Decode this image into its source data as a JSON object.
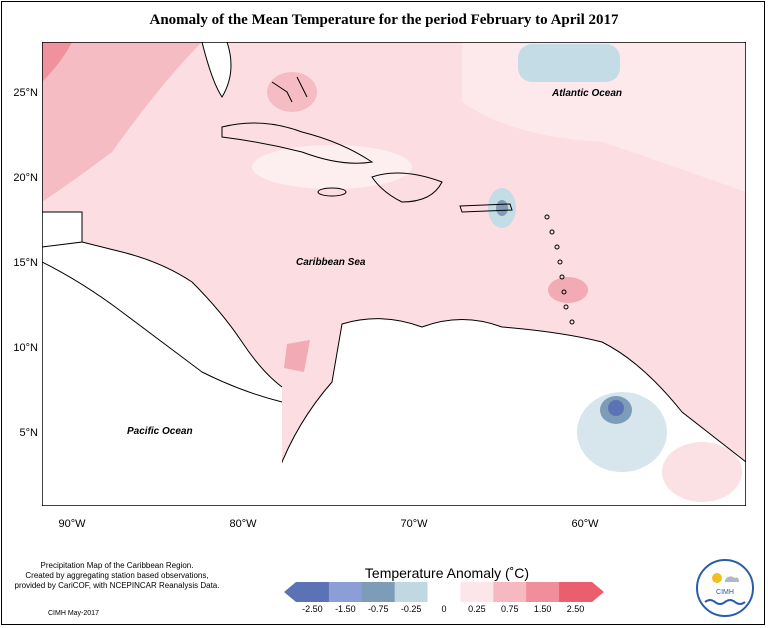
{
  "title": "Anomaly of the Mean Temperature for the period February to April 2017",
  "map": {
    "lat_labels": [
      "25°N",
      "20°N",
      "15°N",
      "10°N",
      "5°N"
    ],
    "lon_labels": [
      "90°W",
      "80°W",
      "70°W",
      "60°W"
    ],
    "ocean_labels": {
      "atlantic": "Atlantic Ocean",
      "caribbean": "Caribbean Sea",
      "pacific": "Pacific Ocean"
    }
  },
  "legend": {
    "title": "Temperature Anomaly (˚C)",
    "ticks": [
      "-2.50",
      "-1.50",
      "-0.75",
      "-0.25",
      "0",
      "0.25",
      "0.75",
      "1.50",
      "2.50"
    ],
    "colors": [
      "#5b73b4",
      "#8b9ed6",
      "#7d9cb8",
      "#c0d8e2",
      "#ffffff",
      "#fde6e9",
      "#f6b9c1",
      "#f08f9b",
      "#e95f6e"
    ]
  },
  "footer": {
    "line1": "Precipitation Map of the Caribbean Region.",
    "line2": "Created by aggregating station based observations,",
    "line3": "provided by CariCOF, with NCEPINCAR Reanalysis Data.",
    "credit": "CIMH May-2017"
  },
  "logo": {
    "text": "CIMH"
  }
}
